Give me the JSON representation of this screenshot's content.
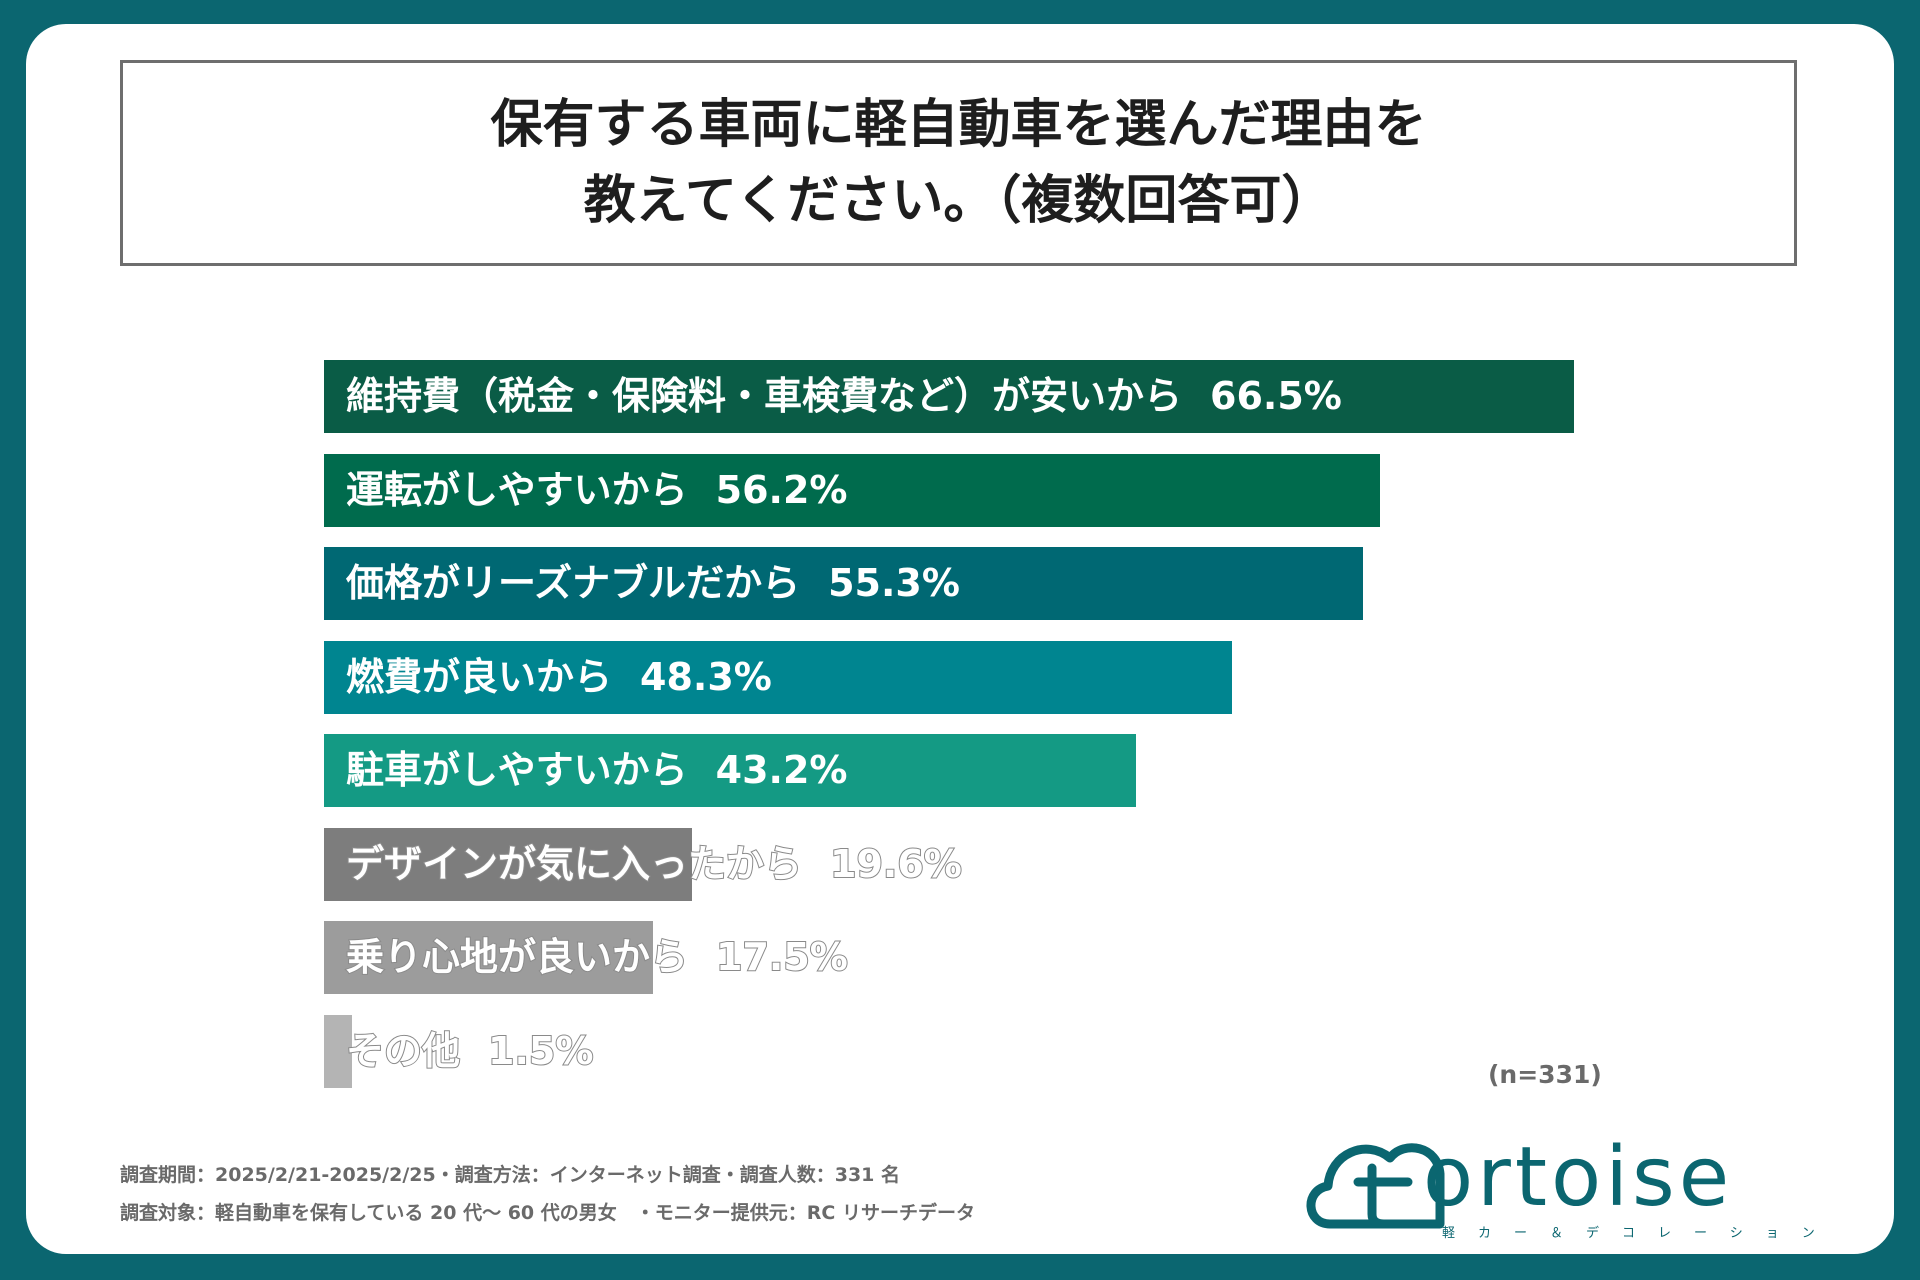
{
  "title": {
    "line1": "保有する車両に軽自動車を選んだ理由を",
    "line2": "教えてください。（複数回答可）"
  },
  "chart_data": {
    "type": "bar",
    "orientation": "horizontal",
    "title": "保有する車両に軽自動車を選んだ理由を教えてください。（複数回答可）",
    "unit": "%",
    "categories": [
      "維持費（税金・保険料・車検費など）が安いから",
      "運転がしやすいから",
      "価格がリーズナブルだから",
      "燃費が良いから",
      "駐車がしやすいから",
      "デザインが気に入ったから",
      "乗り心地が良いから",
      "その他"
    ],
    "values": [
      66.5,
      56.2,
      55.3,
      48.3,
      43.2,
      19.6,
      17.5,
      1.5
    ],
    "value_labels": [
      "66.5%",
      "56.2%",
      "55.3%",
      "48.3%",
      "43.2%",
      "19.6%",
      "17.5%",
      "1.5%"
    ],
    "colors": [
      "#0a5c46",
      "#006b4d",
      "#006873",
      "#008590",
      "#149a84",
      "#7d7d7d",
      "#9c9c9c",
      "#b4b4b4"
    ],
    "xlim": [
      0,
      66.5
    ],
    "grid": false
  },
  "sample_note": "(n=331)",
  "footer": {
    "line1": "調査期間：2025/2/21-2025/2/25・調査方法：インターネット調査・調査人数：331 名",
    "line2": "調査対象：軽自動車を保有している 20 代〜 60 代の男女　・モニター提供元：RC リサーチデータ"
  },
  "logo": {
    "word": "ortoise",
    "icon_letter": "t",
    "tagline": "軽カー＆デコレーション",
    "color": "#0b6670"
  }
}
